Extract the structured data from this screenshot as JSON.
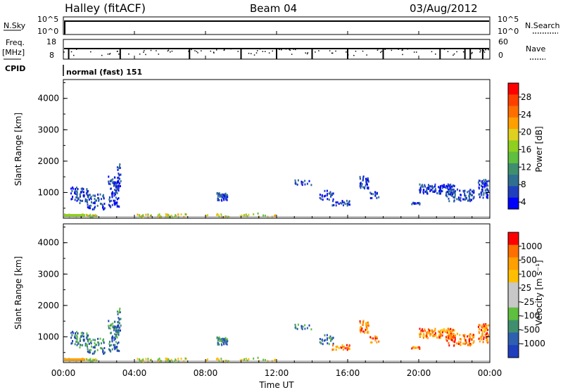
{
  "header": {
    "station": "Halley (fitACF)",
    "beam": "Beam 04",
    "date": "03/Aug/2012"
  },
  "top_panels": {
    "nsky_label": "N.Sky",
    "nsky_ticks": [
      "10^5",
      "10^0"
    ],
    "nsearch_label": "N.Search",
    "nsearch_ticks": [
      "10^5",
      "10^0"
    ],
    "freq_label": "Freq.",
    "freq_unit": "[MHz]",
    "freq_ticks": [
      "18",
      "8"
    ],
    "nave_label": "Nave",
    "nave_ticks": [
      "60",
      "0"
    ],
    "cpid_label": "CPID",
    "cpid_value": "normal (fast) 151"
  },
  "chart_data": [
    {
      "type": "heatmap",
      "name": "power",
      "ylabel": "Slant Range [km]",
      "ylim": [
        180,
        4600
      ],
      "yticks": [
        "4000",
        "3000",
        "2000",
        "1000"
      ],
      "colorbar": {
        "label": "Power [dB]",
        "ticks": [
          "28",
          "24",
          "20",
          "16",
          "12",
          "8",
          "4"
        ],
        "colors": [
          "#0000ff",
          "#1f3fbf",
          "#2f6f8f",
          "#3f8f6f",
          "#5fbf3f",
          "#8fcf1f",
          "#dfcf1f",
          "#ff9f00",
          "#ff6f00",
          "#ff3f00",
          "#ff0000"
        ]
      }
    },
    {
      "type": "heatmap",
      "name": "velocity",
      "ylabel": "Slant Range [km]",
      "xlabel": "Time UT",
      "ylim": [
        180,
        4600
      ],
      "yticks": [
        "4000",
        "3000",
        "2000",
        "1000"
      ],
      "xticks": [
        "00:00",
        "04:00",
        "08:00",
        "12:00",
        "16:00",
        "20:00",
        "00:00"
      ],
      "xrange_hours": [
        0,
        24
      ],
      "colorbar": {
        "label": "Velocity [m s⁻¹]",
        "ticks": [
          "1000",
          "500",
          "100",
          "25",
          "-25",
          "-100",
          "-500",
          "-1000"
        ],
        "colors": [
          "#1f3fbf",
          "#2f5faf",
          "#3f8f6f",
          "#5fbf3f",
          "#c8c8c8",
          "#c8c8c8",
          "#ffbf00",
          "#ff9f00",
          "#ff6f00",
          "#ff0000"
        ]
      }
    }
  ]
}
